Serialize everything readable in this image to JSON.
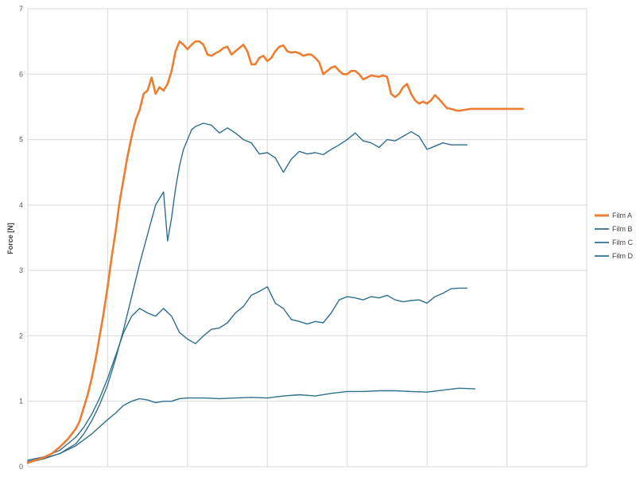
{
  "chart_data": {
    "type": "line",
    "title": "",
    "xlabel": "",
    "ylabel": "Force [N]",
    "ylim": [
      0,
      7
    ],
    "xlim": [
      0,
      7.0
    ],
    "yticks": [
      "0",
      "1",
      "2",
      "3",
      "4",
      "5",
      "6",
      "7"
    ],
    "grid": true,
    "legend_position": "right",
    "series": [
      {
        "name": "Film A",
        "color": "#ED7D31",
        "stroke_width": 2.6,
        "x": [
          0,
          0.1,
          0.2,
          0.3,
          0.4,
          0.5,
          0.55,
          0.6,
          0.65,
          0.7,
          0.75,
          0.8,
          0.85,
          0.9,
          0.95,
          1.0,
          1.05,
          1.1,
          1.15,
          1.2,
          1.25,
          1.3,
          1.35,
          1.4,
          1.45,
          1.5,
          1.55,
          1.6,
          1.65,
          1.7,
          1.75,
          1.8,
          1.85,
          1.9,
          1.95,
          2.0,
          2.05,
          2.1,
          2.15,
          2.2,
          2.25,
          2.3,
          2.35,
          2.4,
          2.45,
          2.5,
          2.55,
          2.6,
          2.65,
          2.7,
          2.75,
          2.8,
          2.85,
          2.9,
          2.95,
          3.0,
          3.05,
          3.1,
          3.15,
          3.2,
          3.25,
          3.3,
          3.35,
          3.4,
          3.45,
          3.5,
          3.55,
          3.6,
          3.65,
          3.7,
          3.75,
          3.8,
          3.85,
          3.9,
          3.95,
          4.0,
          4.05,
          4.1,
          4.15,
          4.2,
          4.25,
          4.3,
          4.35,
          4.4,
          4.45,
          4.5,
          4.55,
          4.6,
          4.65,
          4.7,
          4.75,
          4.8,
          4.85,
          4.9,
          4.95,
          5.0,
          5.05,
          5.1,
          5.15,
          5.2,
          5.25,
          5.3,
          5.35,
          5.4,
          5.45,
          5.5,
          5.55,
          5.6,
          5.65,
          5.7,
          5.75,
          5.8,
          5.85,
          5.9,
          5.95,
          6.0,
          6.05,
          6.1,
          6.15,
          6.2
        ],
        "y": [
          0.06,
          0.1,
          0.14,
          0.2,
          0.3,
          0.42,
          0.5,
          0.58,
          0.7,
          0.9,
          1.1,
          1.35,
          1.65,
          2.0,
          2.35,
          2.75,
          3.2,
          3.6,
          4.05,
          4.4,
          4.75,
          5.05,
          5.3,
          5.45,
          5.7,
          5.75,
          5.95,
          5.7,
          5.8,
          5.75,
          5.85,
          6.05,
          6.35,
          6.5,
          6.45,
          6.38,
          6.45,
          6.5,
          6.5,
          6.45,
          6.3,
          6.28,
          6.32,
          6.35,
          6.4,
          6.42,
          6.3,
          6.35,
          6.4,
          6.45,
          6.35,
          6.15,
          6.15,
          6.25,
          6.28,
          6.2,
          6.25,
          6.35,
          6.42,
          6.44,
          6.35,
          6.33,
          6.34,
          6.32,
          6.28,
          6.3,
          6.3,
          6.25,
          6.18,
          6.0,
          6.05,
          6.1,
          6.12,
          6.05,
          6.0,
          6.0,
          6.05,
          6.05,
          6.0,
          5.92,
          5.95,
          5.98,
          5.97,
          5.96,
          5.98,
          5.96,
          5.7,
          5.65,
          5.7,
          5.8,
          5.85,
          5.7,
          5.6,
          5.55,
          5.58,
          5.55,
          5.6,
          5.68,
          5.62,
          5.55,
          5.48,
          5.47,
          5.45,
          5.44,
          5.45,
          5.46,
          5.47,
          5.47,
          5.47,
          5.47,
          5.47,
          5.47,
          5.47,
          5.47,
          5.47,
          5.47,
          5.47,
          5.47,
          5.47,
          5.47
        ]
      },
      {
        "name": "Film B",
        "color": "#2E6F8E",
        "stroke_width": 1.4,
        "x": [
          0,
          0.2,
          0.4,
          0.6,
          0.7,
          0.8,
          0.9,
          1.0,
          1.1,
          1.2,
          1.3,
          1.4,
          1.5,
          1.6,
          1.7,
          1.75,
          1.8,
          1.85,
          1.9,
          1.95,
          2.0,
          2.05,
          2.1,
          2.2,
          2.3,
          2.4,
          2.5,
          2.6,
          2.7,
          2.8,
          2.9,
          3.0,
          3.1,
          3.2,
          3.3,
          3.4,
          3.5,
          3.6,
          3.7,
          3.8,
          3.9,
          4.0,
          4.1,
          4.2,
          4.3,
          4.4,
          4.5,
          4.6,
          4.7,
          4.8,
          4.9,
          5.0,
          5.1,
          5.2,
          5.3,
          5.4,
          5.5
        ],
        "y": [
          0.08,
          0.13,
          0.2,
          0.35,
          0.5,
          0.7,
          0.95,
          1.25,
          1.65,
          2.1,
          2.6,
          3.1,
          3.55,
          4.0,
          4.2,
          3.45,
          3.8,
          4.25,
          4.6,
          4.85,
          5.0,
          5.15,
          5.2,
          5.25,
          5.22,
          5.1,
          5.18,
          5.1,
          5.0,
          4.95,
          4.78,
          4.8,
          4.72,
          4.5,
          4.7,
          4.82,
          4.78,
          4.8,
          4.77,
          4.85,
          4.92,
          5.0,
          5.1,
          4.98,
          4.95,
          4.88,
          5.0,
          4.98,
          5.05,
          5.12,
          5.05,
          4.85,
          4.9,
          4.95,
          4.92,
          4.92,
          4.92
        ]
      },
      {
        "name": "Film C",
        "color": "#2E6F8E",
        "stroke_width": 1.4,
        "x": [
          0,
          0.2,
          0.4,
          0.6,
          0.7,
          0.8,
          0.9,
          1.0,
          1.1,
          1.2,
          1.3,
          1.4,
          1.5,
          1.6,
          1.7,
          1.8,
          1.9,
          2.0,
          2.1,
          2.2,
          2.3,
          2.4,
          2.5,
          2.6,
          2.7,
          2.8,
          2.9,
          3.0,
          3.1,
          3.2,
          3.3,
          3.4,
          3.5,
          3.6,
          3.7,
          3.8,
          3.9,
          4.0,
          4.1,
          4.2,
          4.3,
          4.4,
          4.5,
          4.6,
          4.7,
          4.8,
          4.9,
          5.0,
          5.1,
          5.2,
          5.3,
          5.4,
          5.5
        ],
        "y": [
          0.1,
          0.15,
          0.25,
          0.45,
          0.6,
          0.8,
          1.05,
          1.35,
          1.7,
          2.05,
          2.3,
          2.42,
          2.35,
          2.3,
          2.42,
          2.3,
          2.05,
          1.95,
          1.88,
          2.0,
          2.1,
          2.12,
          2.2,
          2.35,
          2.45,
          2.62,
          2.68,
          2.75,
          2.5,
          2.42,
          2.25,
          2.22,
          2.18,
          2.22,
          2.2,
          2.35,
          2.55,
          2.6,
          2.58,
          2.55,
          2.6,
          2.58,
          2.62,
          2.55,
          2.52,
          2.54,
          2.55,
          2.5,
          2.6,
          2.65,
          2.72,
          2.73,
          2.73
        ]
      },
      {
        "name": "Film D",
        "color": "#2E6F8E",
        "stroke_width": 1.4,
        "x": [
          0,
          0.2,
          0.4,
          0.6,
          0.8,
          1.0,
          1.1,
          1.2,
          1.3,
          1.4,
          1.5,
          1.6,
          1.7,
          1.8,
          1.9,
          2.0,
          2.2,
          2.4,
          2.6,
          2.8,
          3.0,
          3.2,
          3.4,
          3.6,
          3.8,
          4.0,
          4.2,
          4.4,
          4.6,
          4.8,
          5.0,
          5.2,
          5.4,
          5.6
        ],
        "y": [
          0.06,
          0.12,
          0.2,
          0.32,
          0.5,
          0.72,
          0.82,
          0.94,
          1.0,
          1.04,
          1.02,
          0.98,
          1.0,
          1.0,
          1.04,
          1.05,
          1.05,
          1.04,
          1.05,
          1.06,
          1.05,
          1.08,
          1.1,
          1.08,
          1.12,
          1.15,
          1.15,
          1.16,
          1.16,
          1.15,
          1.14,
          1.17,
          1.2,
          1.19
        ]
      }
    ]
  }
}
